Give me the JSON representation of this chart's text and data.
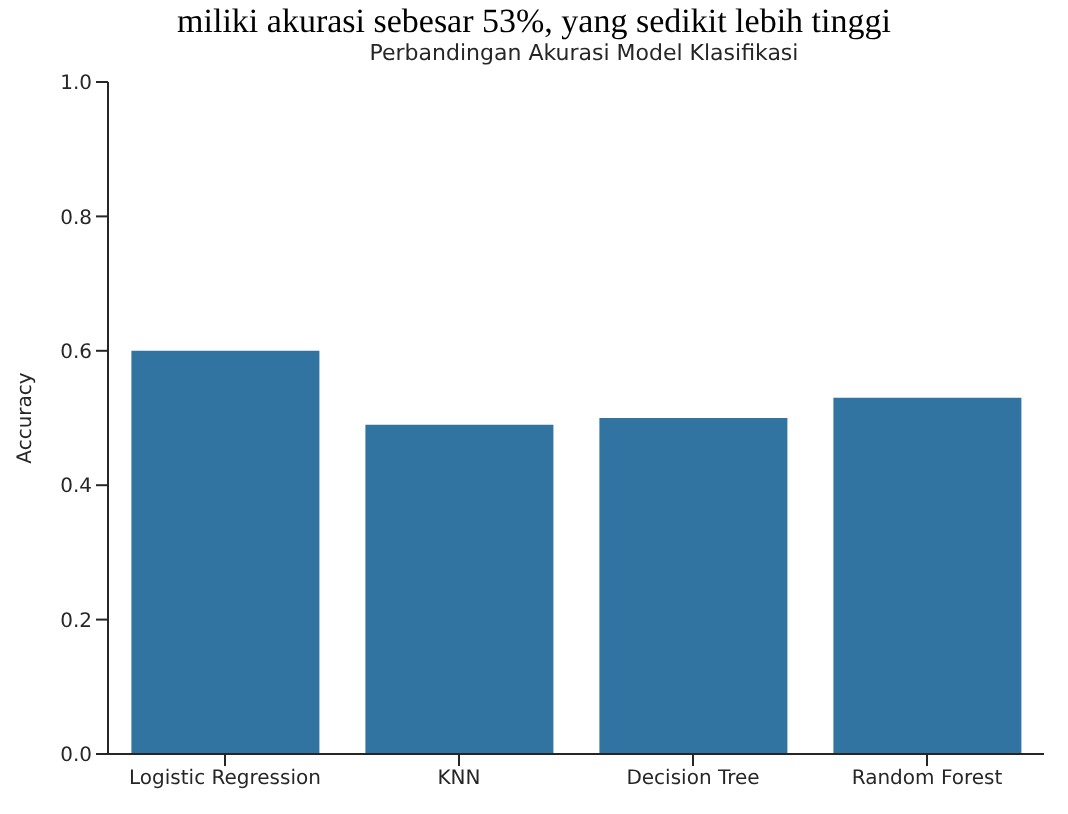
{
  "chart_data": {
    "type": "bar",
    "title": "Perbandingan Akurasi Model Klasifikasi",
    "ylabel": "Accuracy",
    "annotations": [
      "miliki akurasi sebesar 53%, yang sedikit lebih tinggi"
    ],
    "categories": [
      "Logistic Regression",
      "KNN",
      "Decision Tree",
      "Random Forest"
    ],
    "values": [
      0.6,
      0.49,
      0.5,
      0.53
    ],
    "color": "#3274a1",
    "ylim": [
      0,
      1
    ],
    "yticks": [
      {
        "value": 0,
        "label": "0.0"
      },
      {
        "value": 0.2,
        "label": "0.2"
      },
      {
        "value": 0.4,
        "label": "0.4"
      },
      {
        "value": 0.6,
        "label": "0.6"
      },
      {
        "value": 0.8,
        "label": "0.8"
      },
      {
        "value": 1,
        "label": "1.0"
      }
    ],
    "grid": false,
    "legend": false
  }
}
